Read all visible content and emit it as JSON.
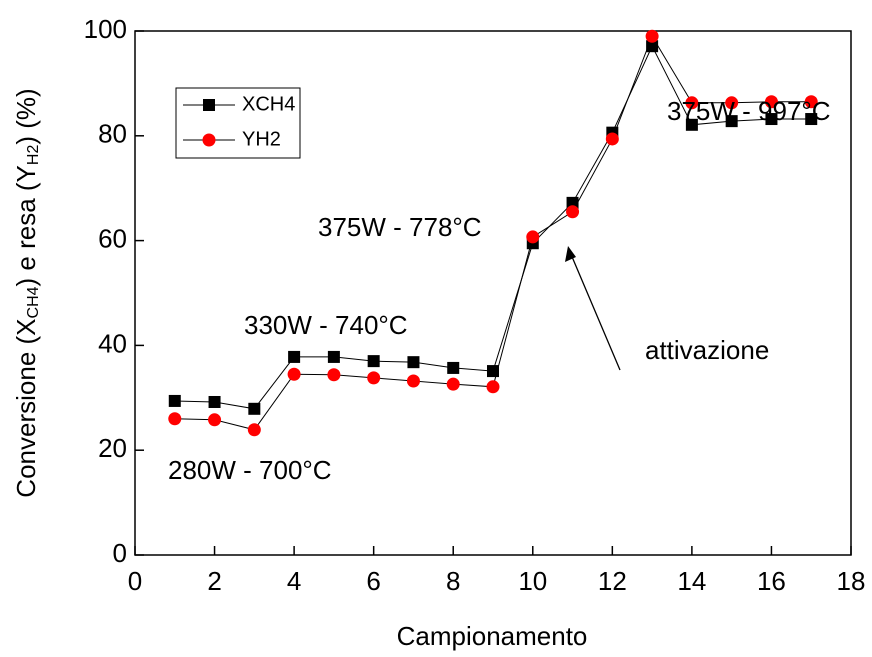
{
  "chart_data": {
    "type": "line",
    "x_label": "Campionamento",
    "y_label": [
      "Conversione (X",
      "CH4",
      ") e resa (Y",
      "H2",
      ") (%)"
    ],
    "annotations": [
      "280W - 700°C",
      "330W - 740°C",
      "375W - 778°C",
      "375W - 997°C",
      "attivazione"
    ],
    "x": [
      1,
      2,
      3,
      4,
      5,
      6,
      7,
      8,
      9,
      10,
      11,
      12,
      13,
      14,
      15,
      16,
      17
    ],
    "series": [
      {
        "name": "XCH4",
        "color": "#000000",
        "marker": "square",
        "values": [
          29.4,
          29.2,
          27.9,
          37.8,
          37.8,
          37.0,
          36.8,
          35.7,
          35.1,
          59.5,
          67.2,
          80.6,
          97.1,
          82.1,
          82.8,
          83.2,
          83.2
        ]
      },
      {
        "name": "YH2",
        "color": "#ff0000",
        "marker": "circle",
        "values": [
          26.0,
          25.8,
          23.9,
          34.5,
          34.4,
          33.8,
          33.2,
          32.6,
          32.1,
          60.7,
          65.5,
          79.4,
          99.0,
          86.3,
          86.3,
          86.5,
          86.5
        ]
      }
    ],
    "xlim": [
      0,
      18
    ],
    "xticks": [
      0,
      2,
      4,
      6,
      8,
      10,
      12,
      14,
      16,
      18
    ],
    "ylim": [
      0,
      100
    ],
    "yticks": [
      0,
      20,
      40,
      60,
      80,
      100
    ],
    "grid": false
  }
}
